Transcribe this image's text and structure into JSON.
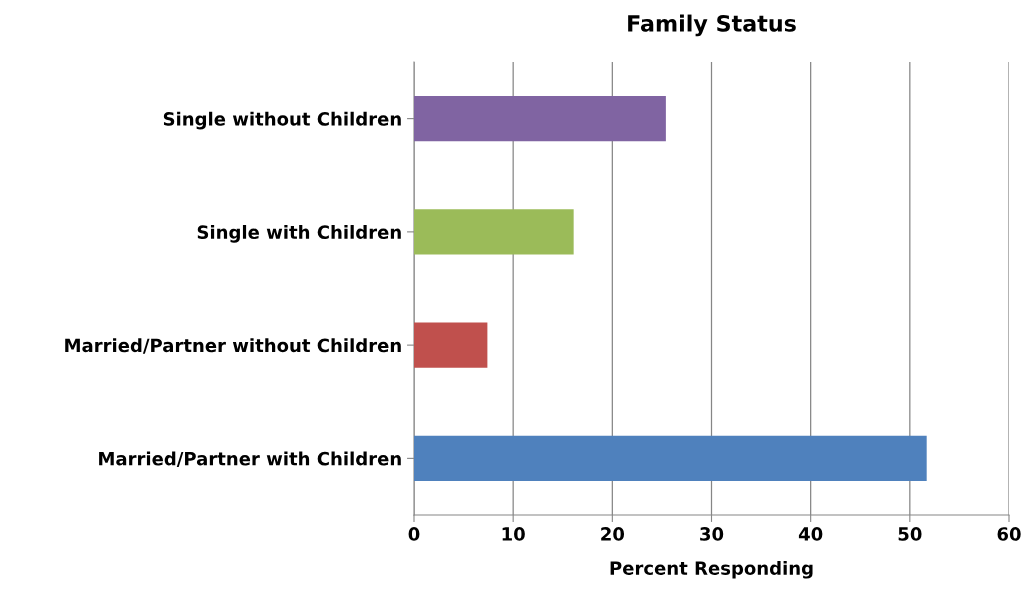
{
  "chart_data": {
    "type": "bar",
    "orientation": "horizontal",
    "title": "Family Status",
    "xlabel": "Percent Responding",
    "categories": [
      "Single without Children",
      "Single with Children",
      "Married/Partner without Children",
      "Married/Partner with Children"
    ],
    "values": [
      25.4,
      16.1,
      7.4,
      51.7
    ],
    "colors": [
      "#8064a2",
      "#9bbb59",
      "#c0504d",
      "#4f81bd"
    ],
    "xlim": [
      0,
      60
    ],
    "xticks": [
      0,
      10,
      20,
      30,
      40,
      50,
      60
    ],
    "grid": "x"
  }
}
